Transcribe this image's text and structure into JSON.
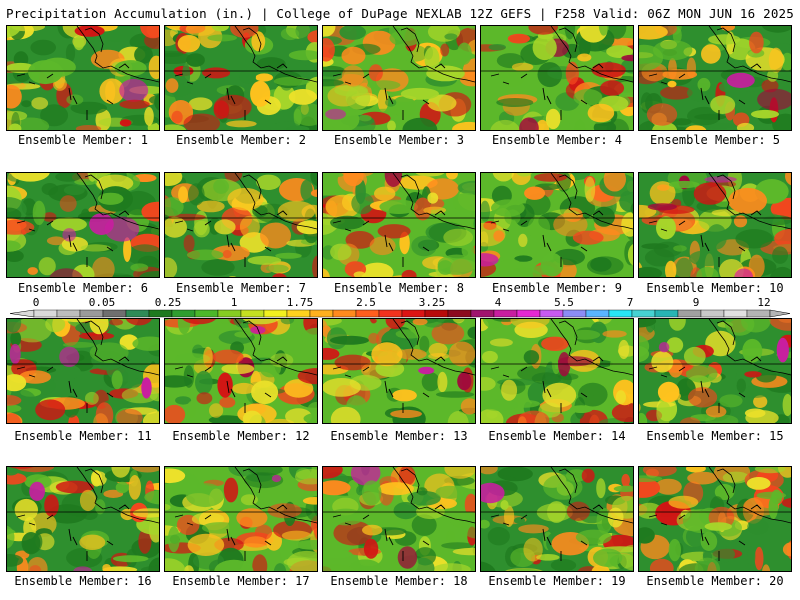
{
  "header": {
    "left": "Precipitation Accumulation (in.) | College of DuPage NEXLAB",
    "right": "12Z GEFS | F258 Valid: 06Z MON JUN 16 2025"
  },
  "panels": [
    {
      "label": "Ensemble Member: 1"
    },
    {
      "label": "Ensemble Member: 2"
    },
    {
      "label": "Ensemble Member: 3"
    },
    {
      "label": "Ensemble Member: 4"
    },
    {
      "label": "Ensemble Member: 5"
    },
    {
      "label": "Ensemble Member: 6"
    },
    {
      "label": "Ensemble Member: 7"
    },
    {
      "label": "Ensemble Member: 8"
    },
    {
      "label": "Ensemble Member: 9"
    },
    {
      "label": "Ensemble Member: 10"
    },
    {
      "label": "Ensemble Member: 11"
    },
    {
      "label": "Ensemble Member: 12"
    },
    {
      "label": "Ensemble Member: 13"
    },
    {
      "label": "Ensemble Member: 14"
    },
    {
      "label": "Ensemble Member: 15"
    },
    {
      "label": "Ensemble Member: 16"
    },
    {
      "label": "Ensemble Member: 17"
    },
    {
      "label": "Ensemble Member: 18"
    },
    {
      "label": "Ensemble Member: 19"
    },
    {
      "label": "Ensemble Member: 20"
    }
  ],
  "colorbar": {
    "labels": [
      "0",
      "0.05",
      "0.25",
      "1",
      "1.75",
      "2.5",
      "3.25",
      "4",
      "5.5",
      "7",
      "9",
      "12"
    ],
    "colors": [
      "#d9d9d9",
      "#bdbdbd",
      "#9a9a9a",
      "#6f6f6f",
      "#2e8b57",
      "#1e7a1e",
      "#2f9e2f",
      "#4cb82a",
      "#86cc22",
      "#c4e021",
      "#f2f01f",
      "#ffd21e",
      "#ffb01e",
      "#ff8a1e",
      "#ff5e1e",
      "#f2321e",
      "#dc1414",
      "#b80a0a",
      "#8c0a1e",
      "#a0146e",
      "#c81ea0",
      "#e628d2",
      "#c85af0",
      "#8c8cf5",
      "#5ab4ff",
      "#28e6f5",
      "#46d2d2",
      "#28b4b4",
      "#a0a0a0",
      "#c8c8c8",
      "#e0e0e0",
      "#b4b4b4"
    ]
  }
}
